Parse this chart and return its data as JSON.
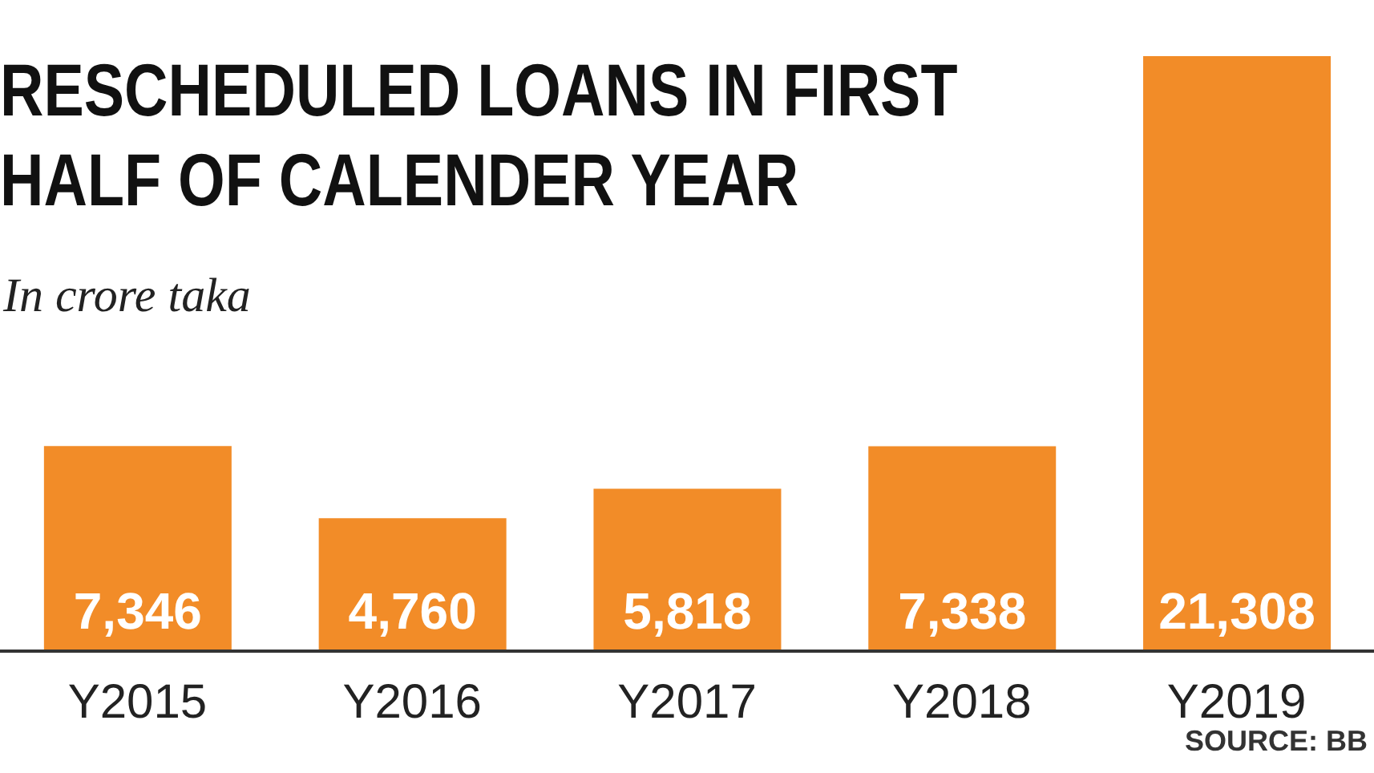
{
  "chart_data": {
    "type": "bar",
    "title": "RESCHEDULED LOANS IN FIRST HALF OF CALENDER YEAR",
    "subtitle": "In crore taka",
    "annotations": [
      "SOURCE: BB"
    ],
    "categories": [
      "Y2015",
      "Y2016",
      "Y2017",
      "Y2018",
      "Y2019"
    ],
    "values": [
      7346,
      4760,
      5818,
      7338,
      21308
    ],
    "color": "#f28c28",
    "value_labels": [
      "7,346",
      "4,760",
      "5,818",
      "7,338",
      "21,308"
    ]
  }
}
